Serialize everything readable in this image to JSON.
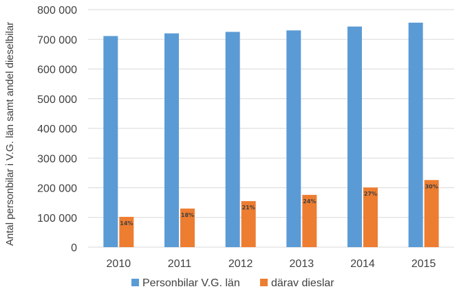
{
  "chart_data": {
    "type": "bar",
    "title": "",
    "xlabel": "",
    "ylabel": "Antal personbilar i V.G. län samt andel dieselbilar",
    "categories": [
      "2010",
      "2011",
      "2012",
      "2013",
      "2014",
      "2015"
    ],
    "ylim": [
      0,
      800000
    ],
    "yticks": [
      0,
      100000,
      200000,
      300000,
      400000,
      500000,
      600000,
      700000,
      800000
    ],
    "ytick_labels": [
      "0",
      "100 000",
      "200 000",
      "300 000",
      "400 000",
      "500 000",
      "600 000",
      "700 000",
      "800 000"
    ],
    "grid": true,
    "legend_position": "bottom",
    "series": [
      {
        "name": "Personbilar V.G. län",
        "color": "#5b9bd5",
        "values": [
          711000,
          720000,
          725000,
          730000,
          743000,
          756000
        ]
      },
      {
        "name": "därav dieslar",
        "color": "#ed7d31",
        "values": [
          102000,
          130000,
          155000,
          176000,
          201000,
          226000
        ],
        "data_labels": [
          "14%",
          "18%",
          "21%",
          "24%",
          "27%",
          "30%"
        ]
      }
    ]
  }
}
